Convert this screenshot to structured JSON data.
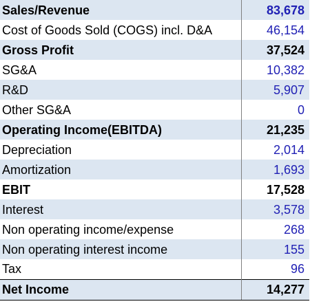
{
  "rows": [
    {
      "label": "Sales/Revenue",
      "value": "83,678"
    },
    {
      "label": "Cost of Goods Sold (COGS) incl. D&A",
      "value": "46,154"
    },
    {
      "label": "Gross Profit",
      "value": "37,524"
    },
    {
      "label": "SG&A",
      "value": "10,382"
    },
    {
      "label": "R&D",
      "value": "5,907"
    },
    {
      "label": "Other SG&A",
      "value": "0"
    },
    {
      "label": "Operating Income(EBITDA)",
      "value": "21,235"
    },
    {
      "label": "Depreciation",
      "value": "2,014"
    },
    {
      "label": "Amortization",
      "value": "1,693"
    },
    {
      "label": "EBIT",
      "value": "17,528"
    },
    {
      "label": "Interest",
      "value": "3,578"
    },
    {
      "label": "Non operating income/expense",
      "value": "268"
    },
    {
      "label": "Non operating interest income",
      "value": "155"
    },
    {
      "label": "Tax",
      "value": "96"
    },
    {
      "label": "Net Income",
      "value": "14,277"
    }
  ],
  "colors": {
    "input_value": "#1f1fb4",
    "total_value": "#000000",
    "row_shade": "#dce6f1"
  }
}
